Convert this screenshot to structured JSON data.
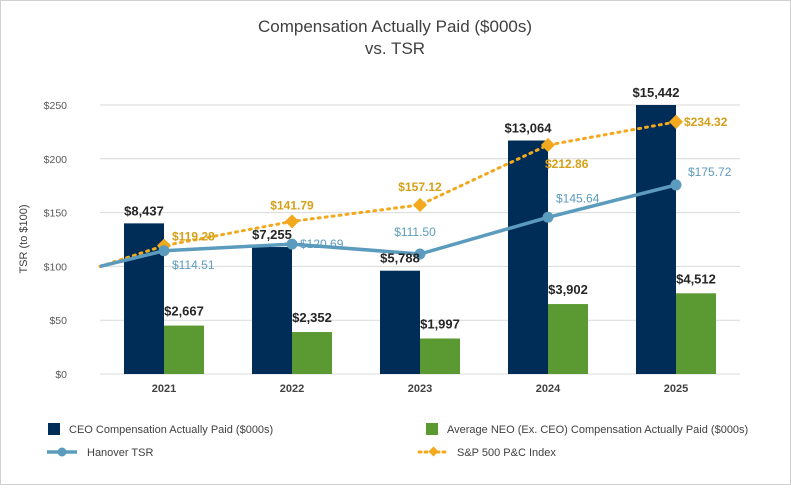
{
  "chart_data": {
    "type": "bar",
    "title": "Compensation Actually Paid ($000s)",
    "subtitle": "vs. TSR",
    "ylabel": "TSR (to $100)",
    "ylim": [
      0,
      250
    ],
    "yticks": [
      "$0",
      "$50",
      "$100",
      "$150",
      "$200",
      "$250"
    ],
    "categories": [
      "2021",
      "2022",
      "2023",
      "2024",
      "2025"
    ],
    "ceo_comp": {
      "name": "CEO Compensation Actually Paid ($000s)",
      "color": "#002d57",
      "scaled_values": [
        140,
        118,
        96,
        217,
        250
      ],
      "labels": [
        "$8,437",
        "$7,255",
        "$5,788",
        "$13,064",
        "$15,442"
      ]
    },
    "neo_comp": {
      "name": "Average NEO (Ex. CEO) Compensation Actually Paid ($000s)",
      "color": "#5b9a32",
      "scaled_values": [
        45,
        39,
        33,
        65,
        75
      ],
      "labels": [
        "$2,667",
        "$2,352",
        "$1,997",
        "$3,902",
        "$4,512"
      ]
    },
    "hanover_tsr": {
      "name": "Hanover TSR",
      "color": "#5b9bbd",
      "start": 100,
      "values": [
        114.51,
        120.69,
        111.5,
        145.64,
        175.72
      ],
      "labels": [
        "$114.51",
        "$120.69",
        "$111.50",
        "$145.64",
        "$175.72"
      ]
    },
    "sp500_pc": {
      "name": "S&P 500 P&C Index",
      "color": "#f2a91e",
      "start": 100,
      "values": [
        119.28,
        141.79,
        157.12,
        212.86,
        234.32
      ],
      "labels": [
        "$119.28",
        "$141.79",
        "$157.12",
        "$212.86",
        "$234.32"
      ]
    },
    "grid": true,
    "legend_position": "bottom"
  }
}
